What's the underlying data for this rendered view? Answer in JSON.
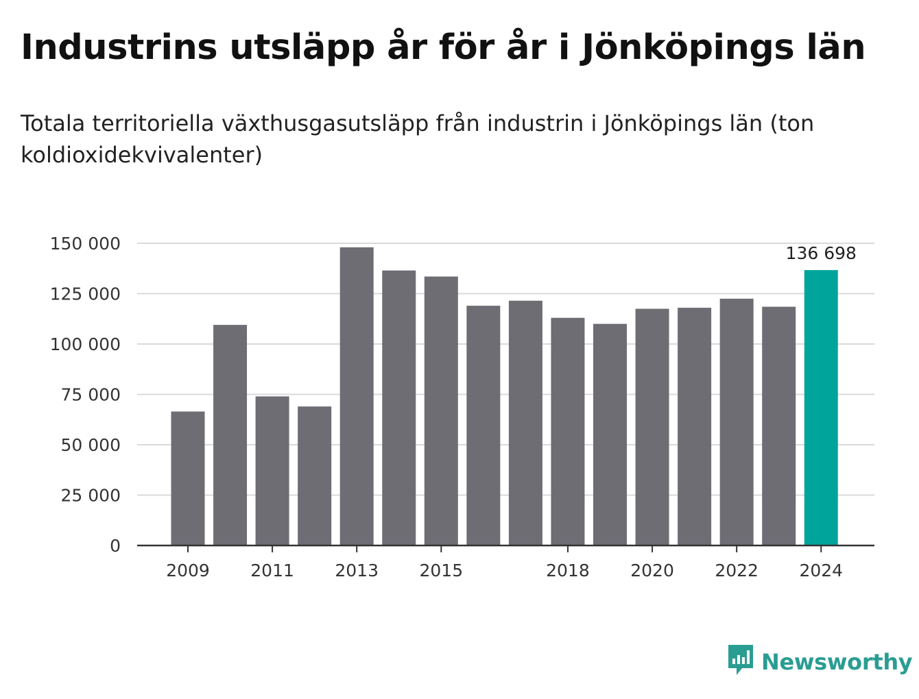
{
  "header": {
    "title": "Industrins utsläpp år för år i Jönköpings län",
    "subtitle": "Totala territoriella växthusgasutsläpp från industrin i Jönköpings län (ton koldioxidekvivalenter)"
  },
  "brand": {
    "name": "Newsworthy",
    "icon": "newsworthy-logo-icon"
  },
  "colors": {
    "bar": "#6e6d74",
    "highlight": "#00a49a",
    "grid": "#d9d9d9",
    "axis": "#333333"
  },
  "chart_data": {
    "type": "bar",
    "title": "Industrins utsläpp år för år i Jönköpings län",
    "subtitle": "Totala territoriella växthusgasutsläpp från industrin i Jönköpings län (ton koldioxidekvivalenter)",
    "categories": [
      "2009",
      "2010",
      "2011",
      "2012",
      "2013",
      "2014",
      "2015",
      "2016",
      "2017",
      "2018",
      "2019",
      "2020",
      "2021",
      "2022",
      "2023",
      "2024"
    ],
    "values": [
      66500,
      109500,
      74000,
      69000,
      148000,
      136500,
      133500,
      119000,
      121500,
      113000,
      110000,
      117500,
      118000,
      122500,
      118500,
      136698
    ],
    "highlight_index": 15,
    "highlight_label": "136 698",
    "x_tick_labels": [
      "2009",
      "2011",
      "2013",
      "2015",
      "2018",
      "2020",
      "2022",
      "2024"
    ],
    "y_ticks": [
      0,
      25000,
      50000,
      75000,
      100000,
      125000,
      150000
    ],
    "y_tick_labels": [
      "0",
      "25 000",
      "50 000",
      "75 000",
      "100 000",
      "125 000",
      "150 000"
    ],
    "ylim": [
      0,
      150000
    ],
    "grid": true,
    "legend": "none"
  }
}
